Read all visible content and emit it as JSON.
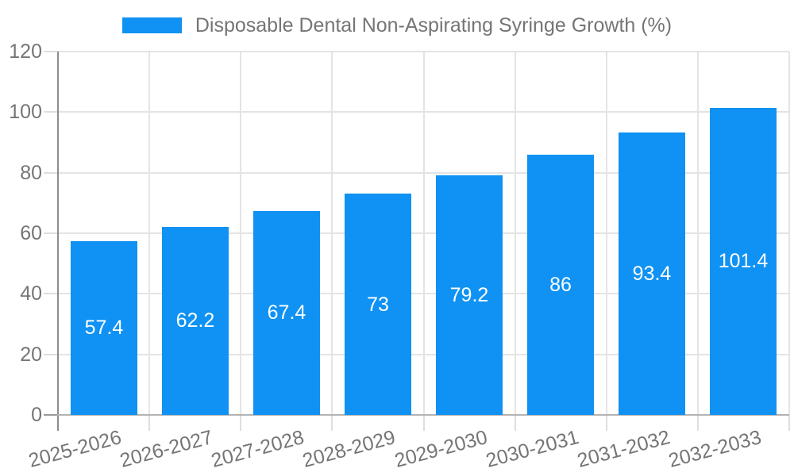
{
  "legend": {
    "label": "Disposable Dental Non-Aspirating Syringe Growth (%)"
  },
  "colors": {
    "bar": "#0f92f3",
    "grid": "#e4e4e4",
    "axis_y": "#8c8c8c",
    "axis_x": "#b3b3b3",
    "tick_dash": "#dedede",
    "tick_dash_zero": "#9a9a9a",
    "tick_text": "#757575",
    "legend_text": "#757575",
    "value_label": "#ffffff",
    "background": "#ffffff"
  },
  "chart_data": {
    "type": "bar",
    "title": "Disposable Dental Non-Aspirating Syringe Growth (%)",
    "series": [
      {
        "name": "Disposable Dental Non-Aspirating Syringe Growth (%)",
        "values": [
          57.4,
          62.2,
          67.4,
          73,
          79.2,
          86,
          93.4,
          101.4
        ]
      }
    ],
    "categories": [
      "2025-2026",
      "2026-2027",
      "2027-2028",
      "2028-2029",
      "2029-2030",
      "2030-2031",
      "2031-2032",
      "2032-2033"
    ],
    "value_labels": [
      "57.4",
      "62.2",
      "67.4",
      "73",
      "79.2",
      "86",
      "93.4",
      "101.4"
    ],
    "xlabel": "",
    "ylabel": "",
    "ylim": [
      0,
      120
    ],
    "yticks": [
      0,
      20,
      40,
      60,
      80,
      100,
      120
    ],
    "grid": true,
    "legend_position": "top",
    "value_labels_inside_bars": true
  }
}
